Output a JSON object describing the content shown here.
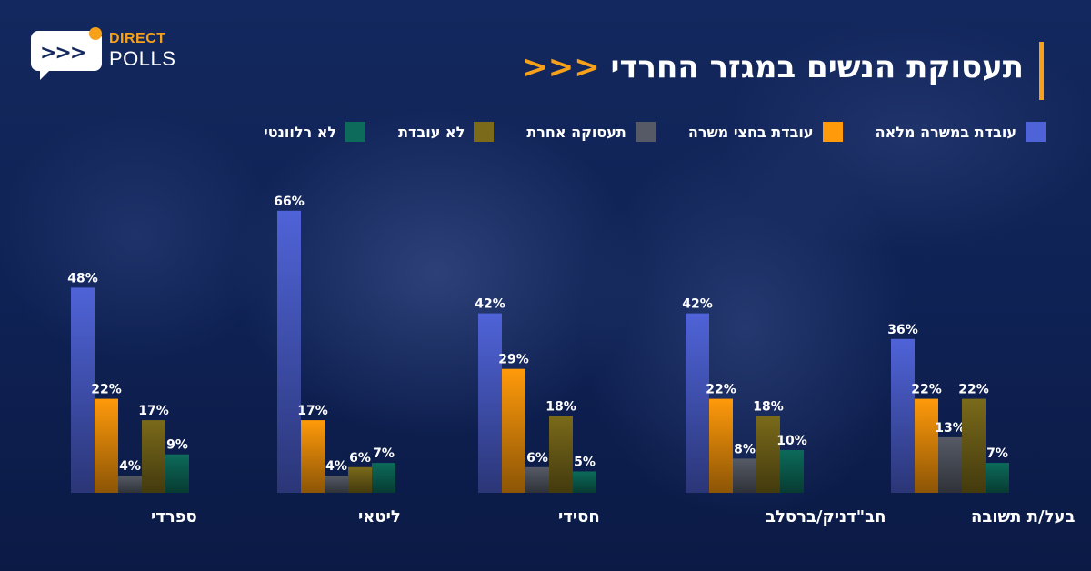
{
  "logo": {
    "line1": "DIRECT",
    "line2": "POLLS",
    "chevrons": ">>>"
  },
  "title": {
    "text": "תעסוקת הנשים במגזר החרדי",
    "arrows": "<<<"
  },
  "colors": {
    "accent": "#f7a11a",
    "background": "#13285e"
  },
  "chart_data": {
    "type": "bar",
    "categories": [
      "ספרדי",
      "ליטאי",
      "חסידי",
      "חב\"דניק/ברסלב",
      "בעל/ת תשובה"
    ],
    "series": [
      {
        "name": "עובדת במשרה מלאה",
        "color": "#4f63d8",
        "values": [
          48,
          66,
          42,
          42,
          36
        ]
      },
      {
        "name": "עובדת בחצי משרה",
        "color": "#ff9a0a",
        "values": [
          22,
          17,
          29,
          22,
          22
        ]
      },
      {
        "name": "תעסוקה אחרת",
        "color": "#555a66",
        "values": [
          4,
          4,
          6,
          8,
          13
        ]
      },
      {
        "name": "לא עובדת",
        "color": "#7a6a1a",
        "values": [
          17,
          6,
          18,
          18,
          22
        ]
      },
      {
        "name": "לא רלוונטי",
        "color": "#0c6b5a",
        "values": [
          9,
          7,
          5,
          10,
          7
        ]
      }
    ],
    "value_suffix": "%",
    "ylim": [
      0,
      70
    ],
    "grid": false,
    "legend_position": "top"
  }
}
